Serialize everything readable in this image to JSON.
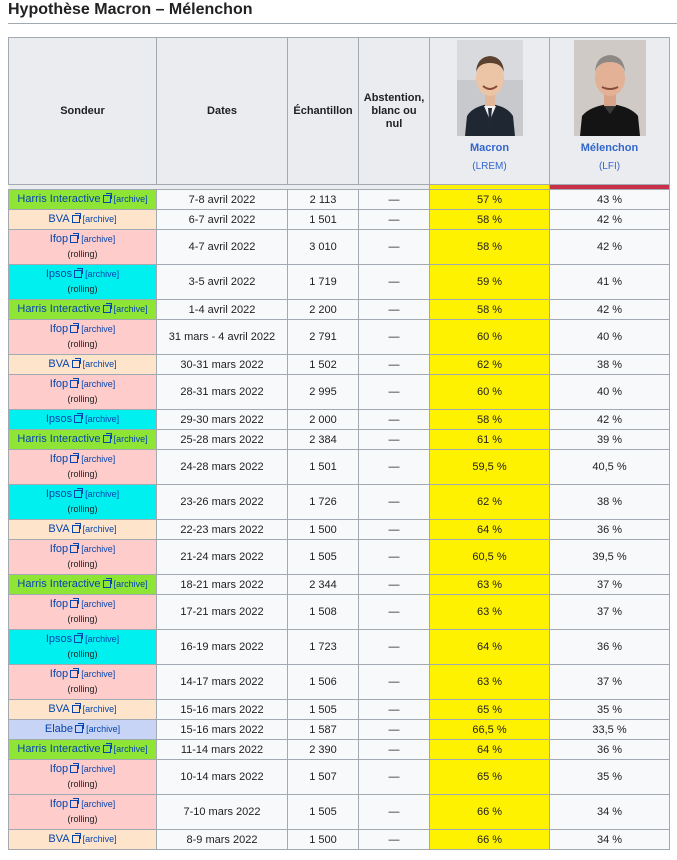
{
  "title": "Hypothèse Macron – Mélenchon",
  "headers": {
    "sondeur": "Sondeur",
    "dates": "Dates",
    "echantillon": "Échantillon",
    "abstention": "Abstention, blanc ou nul"
  },
  "candidates": [
    {
      "name": "Macron",
      "party": "(LREM)",
      "color": "#fff200"
    },
    {
      "name": "Mélenchon",
      "party": "(LFI)",
      "color": "#c9304a"
    }
  ],
  "pollster_colors": {
    "Harris Interactive": "#8fe536",
    "BVA": "#ffe4cc",
    "Ifop": "#ffcccc",
    "Ipsos": "#00f0f0",
    "Elabe": "#c8d4f5"
  },
  "archive_label": "[archive]",
  "rolling_label": "(rolling)",
  "rows": [
    {
      "pollster": "Harris Interactive",
      "rolling": false,
      "dates": "7-8 avril 2022",
      "sample": "2 113",
      "abst": "—",
      "macron": "57 %",
      "melenchon": "43 %"
    },
    {
      "pollster": "BVA",
      "rolling": false,
      "dates": "6-7 avril 2022",
      "sample": "1 501",
      "abst": "—",
      "macron": "58 %",
      "melenchon": "42 %"
    },
    {
      "pollster": "Ifop",
      "rolling": true,
      "dates": "4-7 avril 2022",
      "sample": "3 010",
      "abst": "—",
      "macron": "58 %",
      "melenchon": "42 %"
    },
    {
      "pollster": "Ipsos",
      "rolling": true,
      "dates": "3-5 avril 2022",
      "sample": "1 719",
      "abst": "—",
      "macron": "59 %",
      "melenchon": "41 %"
    },
    {
      "pollster": "Harris Interactive",
      "rolling": false,
      "dates": "1-4 avril 2022",
      "sample": "2 200",
      "abst": "—",
      "macron": "58 %",
      "melenchon": "42 %"
    },
    {
      "pollster": "Ifop",
      "rolling": true,
      "dates": "31 mars - 4 avril 2022",
      "sample": "2 791",
      "abst": "—",
      "macron": "60 %",
      "melenchon": "40 %"
    },
    {
      "pollster": "BVA",
      "rolling": false,
      "dates": "30-31 mars 2022",
      "sample": "1 502",
      "abst": "—",
      "macron": "62 %",
      "melenchon": "38 %"
    },
    {
      "pollster": "Ifop",
      "rolling": true,
      "dates": "28-31 mars 2022",
      "sample": "2 995",
      "abst": "—",
      "macron": "60 %",
      "melenchon": "40 %"
    },
    {
      "pollster": "Ipsos",
      "rolling": false,
      "dates": "29-30 mars 2022",
      "sample": "2 000",
      "abst": "—",
      "macron": "58 %",
      "melenchon": "42 %"
    },
    {
      "pollster": "Harris Interactive",
      "rolling": false,
      "dates": "25-28 mars 2022",
      "sample": "2 384",
      "abst": "—",
      "macron": "61 %",
      "melenchon": "39 %"
    },
    {
      "pollster": "Ifop",
      "rolling": true,
      "dates": "24-28 mars 2022",
      "sample": "1 501",
      "abst": "—",
      "macron": "59,5 %",
      "melenchon": "40,5 %"
    },
    {
      "pollster": "Ipsos",
      "rolling": true,
      "dates": "23-26 mars 2022",
      "sample": "1 726",
      "abst": "—",
      "macron": "62 %",
      "melenchon": "38 %"
    },
    {
      "pollster": "BVA",
      "rolling": false,
      "dates": "22-23 mars 2022",
      "sample": "1 500",
      "abst": "—",
      "macron": "64 %",
      "melenchon": "36 %"
    },
    {
      "pollster": "Ifop",
      "rolling": true,
      "dates": "21-24 mars 2022",
      "sample": "1 505",
      "abst": "—",
      "macron": "60,5 %",
      "melenchon": "39,5 %"
    },
    {
      "pollster": "Harris Interactive",
      "rolling": false,
      "dates": "18-21 mars 2022",
      "sample": "2 344",
      "abst": "—",
      "macron": "63 %",
      "melenchon": "37 %"
    },
    {
      "pollster": "Ifop",
      "rolling": true,
      "dates": "17-21 mars 2022",
      "sample": "1 508",
      "abst": "—",
      "macron": "63 %",
      "melenchon": "37 %"
    },
    {
      "pollster": "Ipsos",
      "rolling": true,
      "dates": "16-19 mars 2022",
      "sample": "1 723",
      "abst": "—",
      "macron": "64 %",
      "melenchon": "36 %"
    },
    {
      "pollster": "Ifop",
      "rolling": true,
      "dates": "14-17 mars 2022",
      "sample": "1 506",
      "abst": "—",
      "macron": "63 %",
      "melenchon": "37 %"
    },
    {
      "pollster": "BVA",
      "rolling": false,
      "dates": "15-16 mars 2022",
      "sample": "1 505",
      "abst": "—",
      "macron": "65 %",
      "melenchon": "35 %"
    },
    {
      "pollster": "Elabe",
      "rolling": false,
      "dates": "15-16 mars 2022",
      "sample": "1 587",
      "abst": "—",
      "macron": "66,5 %",
      "melenchon": "33,5 %"
    },
    {
      "pollster": "Harris Interactive",
      "rolling": false,
      "dates": "11-14 mars 2022",
      "sample": "2 390",
      "abst": "—",
      "macron": "64 %",
      "melenchon": "36 %"
    },
    {
      "pollster": "Ifop",
      "rolling": true,
      "dates": "10-14 mars 2022",
      "sample": "1 507",
      "abst": "—",
      "macron": "65 %",
      "melenchon": "35 %"
    },
    {
      "pollster": "Ifop",
      "rolling": true,
      "dates": "7-10 mars 2022",
      "sample": "1 505",
      "abst": "—",
      "macron": "66 %",
      "melenchon": "34 %"
    },
    {
      "pollster": "BVA",
      "rolling": false,
      "dates": "8-9 mars 2022",
      "sample": "1 500",
      "abst": "—",
      "macron": "66 %",
      "melenchon": "34 %"
    }
  ]
}
